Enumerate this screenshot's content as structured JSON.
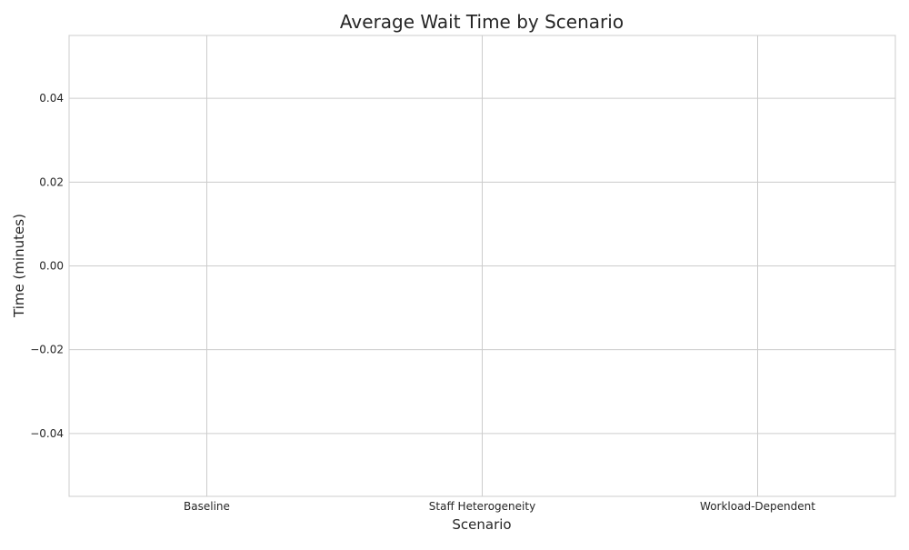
{
  "chart_data": {
    "type": "bar",
    "title": "Average Wait Time by Scenario",
    "xlabel": "Scenario",
    "ylabel": "Time (minutes)",
    "categories": [
      "Baseline",
      "Staff Heterogeneity",
      "Workload-Dependent"
    ],
    "values": [
      0,
      0,
      0
    ],
    "ylim": [
      -0.055,
      0.055
    ],
    "yticks": [
      0.04,
      0.02,
      0.0,
      -0.02,
      -0.04
    ],
    "ytick_labels": [
      "0.04",
      "0.02",
      "0.00",
      "−0.02",
      "−0.04"
    ],
    "grid": true,
    "colors": {
      "grid": "#cccccc",
      "frame": "#cccccc",
      "text": "#262626",
      "background": "#ffffff"
    }
  }
}
